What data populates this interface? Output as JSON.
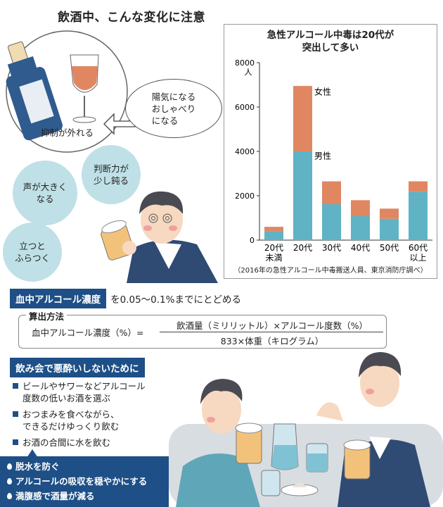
{
  "title": "飲酒中、こんな変化に注意",
  "effects_bubbles": {
    "disinhibition": "抑制が外れる",
    "cheerful_line1": "陽気になる",
    "cheerful_line2": "おしゃべり",
    "cheerful_line3": "になる",
    "judgment_line1": "判断力が",
    "judgment_line2": "少し鈍る",
    "loud_line1": "声が大きく",
    "loud_line2": "なる",
    "stagger_line1": "立つと",
    "stagger_line2": "ふらつく"
  },
  "chart_data": {
    "type": "bar",
    "stacked": true,
    "title": "急性アルコール中毒は20代が突出して多い",
    "title_line1": "急性アルコール中毒は20代が",
    "title_line2": "突出して多い",
    "ylabel": "人",
    "ylim": [
      0,
      8000
    ],
    "yticks": [
      0,
      2000,
      4000,
      6000,
      8000
    ],
    "categories": [
      "20代未満",
      "20代",
      "30代",
      "40代",
      "50代",
      "60代以上"
    ],
    "category_lines": [
      [
        "20代",
        "未満"
      ],
      [
        "20代"
      ],
      [
        "30代"
      ],
      [
        "40代"
      ],
      [
        "50代"
      ],
      [
        "60代",
        "以上"
      ]
    ],
    "series": [
      {
        "name": "男性",
        "color": "#5fb3c4",
        "values": [
          400,
          4000,
          1620,
          1080,
          960,
          2180
        ]
      },
      {
        "name": "女性",
        "color": "#e08762",
        "values": [
          200,
          2950,
          1030,
          720,
          460,
          470
        ]
      }
    ],
    "source": "（2016年の急性アルコール中毒搬送人員、東京消防庁調べ）"
  },
  "bac": {
    "label": "血中アルコール濃度",
    "text": "を0.05〜0.1%までにとどめる",
    "method_label": "算出方法",
    "formula_left": "血中アルコール濃度（%）=",
    "numerator": "飲酒量（ミリリットル）×アルコール度数（%）",
    "denominator": "833×体重（キログラム）"
  },
  "tips": {
    "heading": "飲み会で悪酔いしないために",
    "items": [
      {
        "line1": "ビールやサワーなどアルコール",
        "line2": "度数の低いお酒を選ぶ"
      },
      {
        "line1": "おつまみを食べながら、",
        "line2": "できるだけゆっくり飲む"
      },
      {
        "line1": "お酒の合間に水を飲む",
        "line2": ""
      }
    ]
  },
  "water_effects": [
    "脱水を防ぐ",
    "アルコールの吸収を穏やかにする",
    "満腹感で酒量が減る"
  ],
  "colors": {
    "navy": "#1e4f86",
    "teal_bubble": "#bfe0e6",
    "male": "#5fb3c4",
    "female": "#e08762"
  }
}
